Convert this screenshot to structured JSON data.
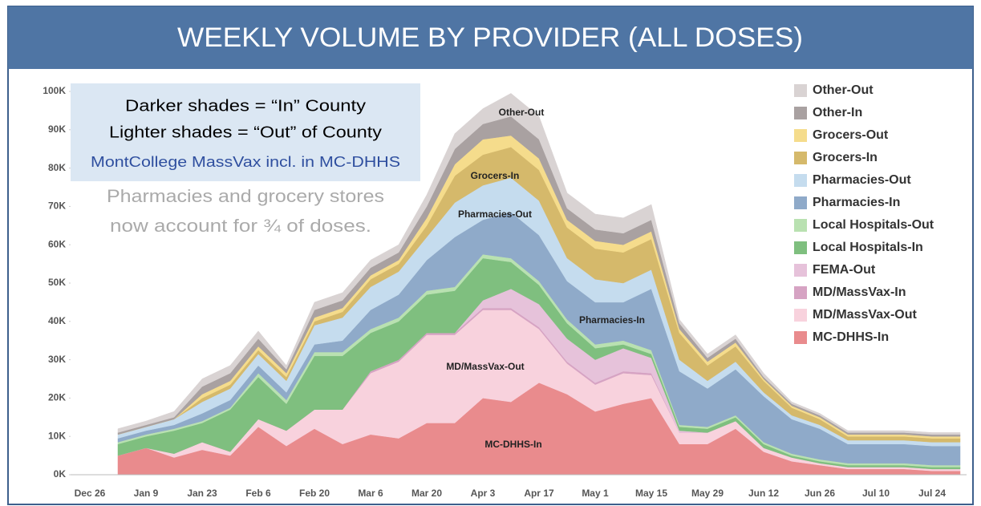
{
  "chart_data": {
    "type": "stacked_area",
    "title": "WEEKLY VOLUME BY PROVIDER (ALL DOSES)",
    "annotations": [
      "Darker shades = “In” County",
      "Lighter shades = “Out” of County",
      "MontCollege MassVax incl. in MC-DHHS",
      "Pharmacies and grocery stores",
      "now account for ¾ of doses."
    ],
    "categories": [
      "Dec 26",
      null,
      "Jan 9",
      null,
      "Jan 23",
      null,
      "Feb 6",
      null,
      "Feb 20",
      null,
      "Mar 6",
      null,
      "Mar 20",
      null,
      "Apr 3",
      null,
      "Apr 17",
      null,
      "May 1",
      null,
      "May 15",
      null,
      "May 29",
      null,
      "Jun 12",
      null,
      "Jun 26",
      null,
      "Jul 10",
      null,
      "Jul 24",
      null
    ],
    "ylim": [
      0,
      100000
    ],
    "yticks": [
      {
        "value": 0,
        "label": "0K"
      },
      {
        "value": 10000,
        "label": "10K"
      },
      {
        "value": 20000,
        "label": "20K"
      },
      {
        "value": 30000,
        "label": "30K"
      },
      {
        "value": 40000,
        "label": "40K"
      },
      {
        "value": 50000,
        "label": "50K"
      },
      {
        "value": 60000,
        "label": "60K"
      },
      {
        "value": 70000,
        "label": "70K"
      },
      {
        "value": 80000,
        "label": "80K"
      },
      {
        "value": 90000,
        "label": "90K"
      },
      {
        "value": 100000,
        "label": "100K"
      }
    ],
    "legend": "right",
    "series": [
      {
        "name": "MC-DHHS-In",
        "color": "#e98b8d",
        "values": [
          null,
          5000,
          7000,
          4500,
          6500,
          5000,
          12500,
          7500,
          12000,
          8000,
          10500,
          9500,
          13500,
          13500,
          20000,
          19000,
          24000,
          21000,
          16500,
          18500,
          20000,
          8000,
          8000,
          12000,
          6000,
          3500,
          2500,
          1500,
          1500,
          1500,
          1000,
          1000
        ]
      },
      {
        "name": "MD/MassVax-Out",
        "color": "#f8d2dd",
        "values": [
          null,
          0,
          0,
          1000,
          2000,
          1000,
          2000,
          4000,
          5000,
          9000,
          16000,
          20000,
          23000,
          23000,
          23000,
          24000,
          14000,
          8000,
          7000,
          8000,
          6000,
          3000,
          3000,
          2000,
          1000,
          1000,
          500,
          500,
          500,
          500,
          500,
          500
        ]
      },
      {
        "name": "MD/MassVax-In",
        "color": "#d6a3c3",
        "values": [
          null,
          0,
          0,
          0,
          0,
          0,
          0,
          0,
          0,
          0,
          500,
          500,
          500,
          500,
          500,
          500,
          500,
          500,
          500,
          500,
          500,
          0,
          0,
          0,
          0,
          0,
          0,
          0,
          0,
          0,
          0,
          0
        ]
      },
      {
        "name": "FEMA-Out",
        "color": "#e6c2da",
        "values": [
          null,
          0,
          0,
          0,
          0,
          0,
          0,
          0,
          0,
          0,
          0,
          0,
          0,
          0,
          2000,
          5000,
          6000,
          6000,
          6000,
          6000,
          4000,
          500,
          0,
          0,
          0,
          0,
          0,
          0,
          0,
          0,
          0,
          0
        ]
      },
      {
        "name": "Local Hospitals-In",
        "color": "#7fbf7f",
        "values": [
          null,
          3000,
          3000,
          6000,
          5000,
          11000,
          11000,
          7000,
          14000,
          14000,
          10000,
          10000,
          10000,
          11000,
          11000,
          7000,
          5000,
          4000,
          3000,
          1000,
          1000,
          1000,
          1000,
          1000,
          1000,
          500,
          500,
          500,
          500,
          500,
          500,
          500
        ]
      },
      {
        "name": "Local Hospitals-Out",
        "color": "#b9e1b1",
        "values": [
          null,
          500,
          500,
          500,
          500,
          500,
          1000,
          1000,
          1000,
          1000,
          1000,
          1000,
          1000,
          1000,
          1000,
          1000,
          1000,
          1000,
          1000,
          1000,
          1000,
          500,
          500,
          500,
          500,
          500,
          500,
          500,
          500,
          500,
          500,
          500
        ]
      },
      {
        "name": "Pharmacies-In",
        "color": "#8faac9",
        "values": [
          null,
          1000,
          1000,
          1000,
          2000,
          2000,
          2000,
          2000,
          2000,
          3000,
          5000,
          6000,
          8000,
          13000,
          9000,
          12000,
          12000,
          10000,
          11000,
          10000,
          16000,
          14000,
          10000,
          12000,
          12000,
          9000,
          8000,
          5000,
          5000,
          5000,
          5000,
          5000
        ]
      },
      {
        "name": "Pharmacies-Out",
        "color": "#c5dcee",
        "values": [
          null,
          1000,
          1000,
          1500,
          3000,
          3000,
          3000,
          3000,
          5000,
          6000,
          6000,
          6000,
          6000,
          9000,
          9000,
          9000,
          9000,
          6000,
          6000,
          5000,
          5000,
          3000,
          2000,
          2000,
          1000,
          1000,
          1000,
          1000,
          1000,
          1000,
          1000,
          1000
        ]
      },
      {
        "name": "Grocers-In",
        "color": "#d5b96b",
        "values": [
          null,
          0,
          0,
          0,
          1000,
          1000,
          1000,
          1000,
          1000,
          1500,
          2000,
          2000,
          3000,
          7000,
          8000,
          8000,
          8000,
          8000,
          8000,
          8000,
          8000,
          7000,
          4000,
          4000,
          3000,
          2000,
          1500,
          1000,
          1000,
          1000,
          1000,
          1000
        ]
      },
      {
        "name": "Grocers-Out",
        "color": "#f5dc8c",
        "values": [
          null,
          0,
          0,
          0,
          1000,
          1000,
          1000,
          1000,
          1000,
          1000,
          1000,
          1000,
          2000,
          3000,
          4000,
          3000,
          3000,
          2000,
          2000,
          2000,
          2000,
          1000,
          1000,
          1000,
          500,
          500,
          500,
          500,
          500,
          500,
          500,
          500
        ]
      },
      {
        "name": "Other-In",
        "color": "#a9a1a1",
        "values": [
          null,
          500,
          500,
          500,
          2000,
          2000,
          2000,
          1000,
          2000,
          2000,
          2000,
          2000,
          3000,
          4000,
          4000,
          5000,
          5000,
          3000,
          3000,
          3000,
          3000,
          1500,
          1000,
          1000,
          500,
          500,
          500,
          500,
          500,
          500,
          500,
          500
        ]
      },
      {
        "name": "Other-Out",
        "color": "#d9d3d3",
        "values": [
          null,
          1000,
          1000,
          1500,
          2000,
          2000,
          2000,
          1000,
          2000,
          2000,
          2000,
          2000,
          3000,
          4000,
          4000,
          6000,
          6000,
          4000,
          4000,
          4000,
          4000,
          1000,
          1000,
          1000,
          1000,
          500,
          500,
          500,
          500,
          500,
          500,
          500
        ]
      }
    ]
  }
}
